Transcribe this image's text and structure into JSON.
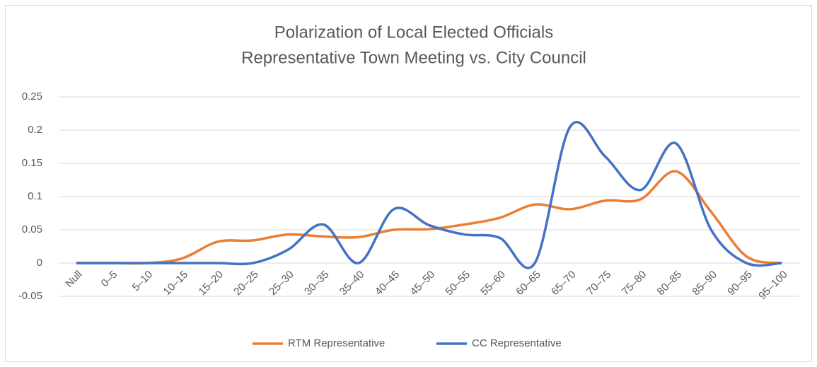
{
  "chart_data": {
    "type": "line",
    "title": "Polarization of Local Elected Officials",
    "subtitle": "Representative Town Meeting vs. City Council",
    "categories": [
      "Null",
      "0–5",
      "5–10",
      "10–15",
      "15–20",
      "20–25",
      "25–30",
      "30–35",
      "35–40",
      "40–45",
      "45–50",
      "50–55",
      "55–60",
      "60–65",
      "65–70",
      "70–75",
      "75–80",
      "80–85",
      "85–90",
      "90–95",
      "95–100"
    ],
    "series": [
      {
        "name": "RTM Representative",
        "color": "#ed7d31",
        "values": [
          0,
          0,
          0,
          0.007,
          0.032,
          0.034,
          0.043,
          0.04,
          0.039,
          0.05,
          0.051,
          0.058,
          0.068,
          0.088,
          0.081,
          0.094,
          0.096,
          0.138,
          0.077,
          0.01,
          0
        ]
      },
      {
        "name": "CC Representative",
        "color": "#4472c4",
        "values": [
          0,
          0,
          0,
          0,
          0,
          0,
          0.02,
          0.058,
          0,
          0.081,
          0.057,
          0.043,
          0.038,
          0,
          0.205,
          0.16,
          0.11,
          0.18,
          0.05,
          0,
          0
        ]
      }
    ],
    "ylim": [
      -0.05,
      0.25
    ],
    "yticks": [
      0.25,
      0.2,
      0.15,
      0.1,
      0.05,
      0,
      -0.05
    ],
    "grid": true,
    "legend": "bottom",
    "smooth": true
  }
}
